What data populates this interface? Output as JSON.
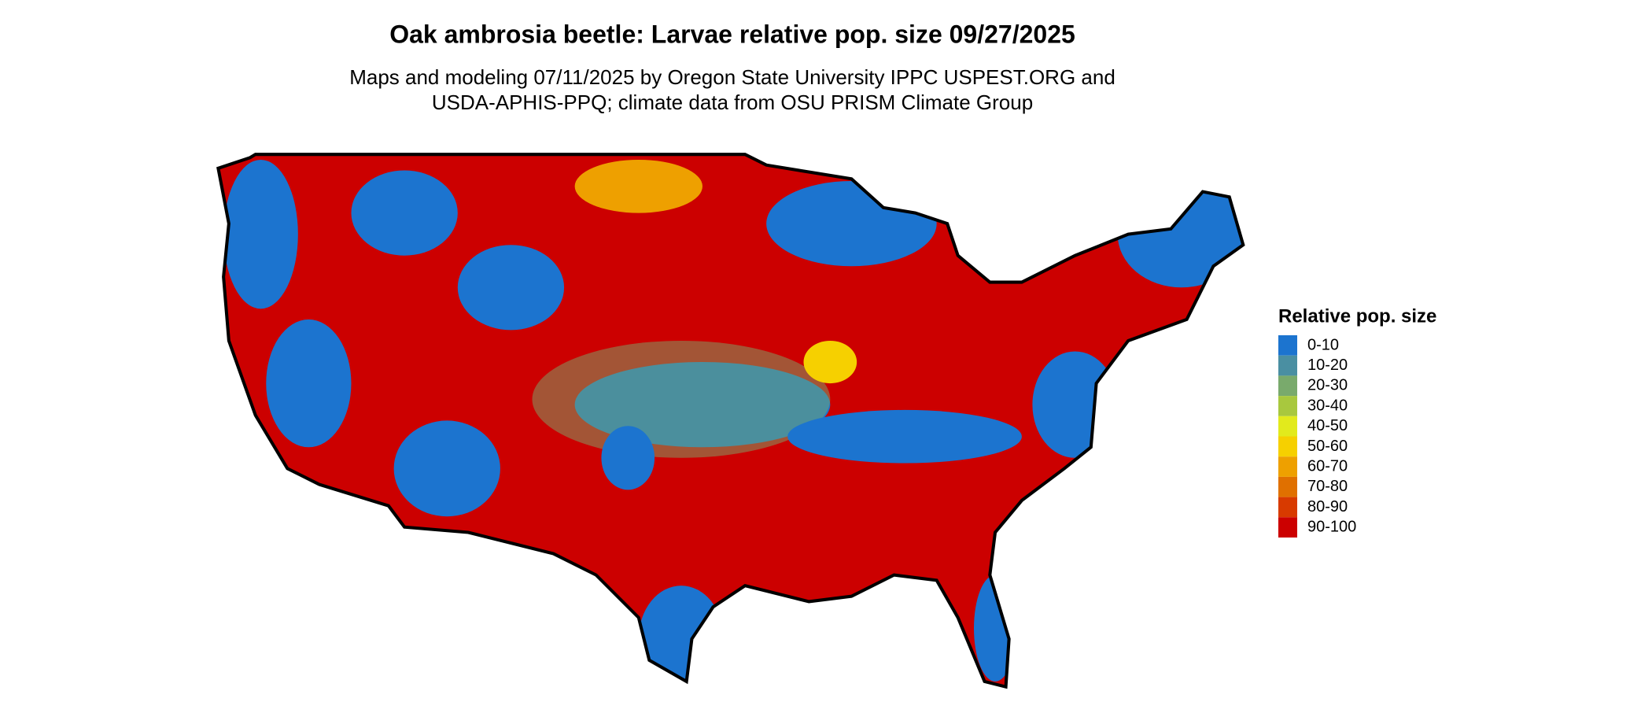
{
  "title": "Oak ambrosia beetle: Larvae relative pop. size 09/27/2025",
  "subtitle": [
    "Maps and modeling 07/11/2025 by Oregon State University IPPC USPEST.ORG and",
    "USDA-APHIS-PPQ; climate data from OSU PRISM Climate Group"
  ],
  "legend": {
    "title": "Relative pop. size",
    "items": [
      {
        "label": "0-10",
        "color": "#1c74cf"
      },
      {
        "label": "10-20",
        "color": "#4a8fa2"
      },
      {
        "label": "20-30",
        "color": "#79aa6c"
      },
      {
        "label": "30-40",
        "color": "#a8c83e"
      },
      {
        "label": "40-50",
        "color": "#e2ea1c"
      },
      {
        "label": "50-60",
        "color": "#f6d000"
      },
      {
        "label": "60-70",
        "color": "#eea000"
      },
      {
        "label": "70-80",
        "color": "#e07000"
      },
      {
        "label": "80-90",
        "color": "#d83a00"
      },
      {
        "label": "90-100",
        "color": "#cc0000"
      }
    ]
  }
}
